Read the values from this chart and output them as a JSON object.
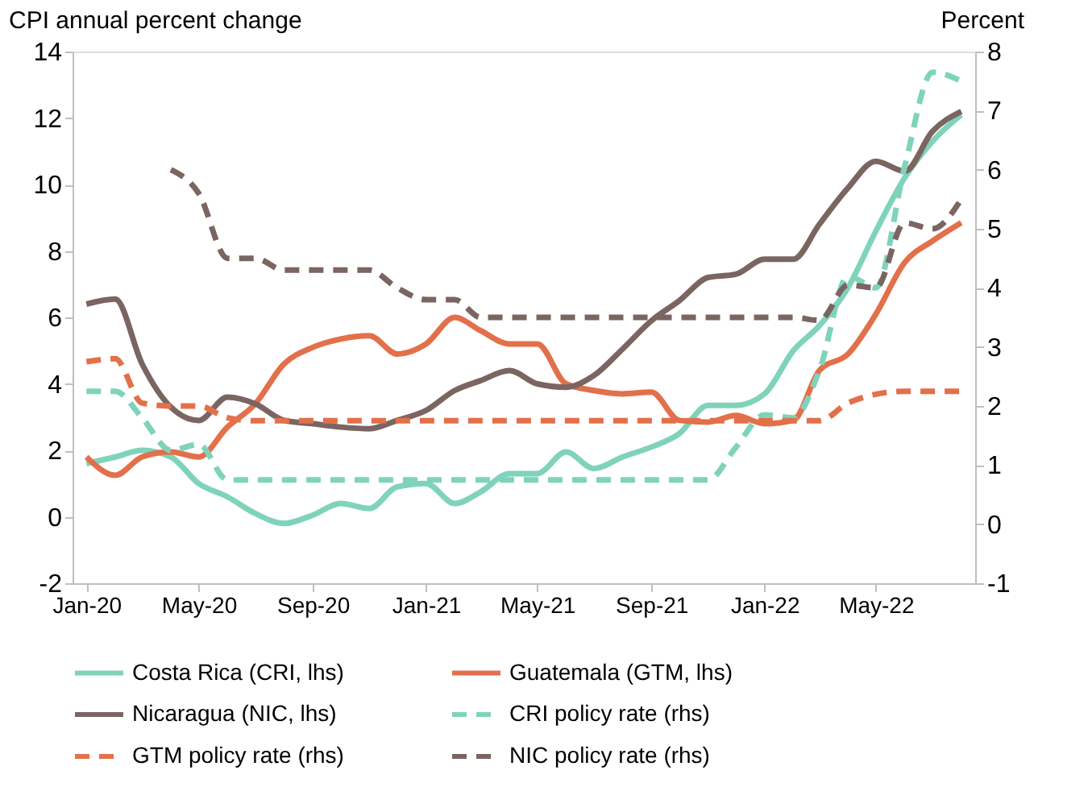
{
  "chart_data": {
    "type": "line",
    "ylabel": "CPI annual percent change",
    "y2label": "Percent",
    "x": [
      "2020-01",
      "2020-02",
      "2020-03",
      "2020-04",
      "2020-05",
      "2020-06",
      "2020-07",
      "2020-08",
      "2020-09",
      "2020-10",
      "2020-11",
      "2020-12",
      "2021-01",
      "2021-02",
      "2021-03",
      "2021-04",
      "2021-05",
      "2021-06",
      "2021-07",
      "2021-08",
      "2021-09",
      "2021-10",
      "2021-11",
      "2021-12",
      "2022-01",
      "2022-02",
      "2022-03",
      "2022-04",
      "2022-05",
      "2022-06",
      "2022-07",
      "2022-08"
    ],
    "xlim": [
      "2019-12-17",
      "2022-08-16"
    ],
    "xticks": [
      {
        "value": "2020-01",
        "label": "Jan-20"
      },
      {
        "value": "2020-05",
        "label": "May-20"
      },
      {
        "value": "2020-09",
        "label": "Sep-20"
      },
      {
        "value": "2021-01",
        "label": "Jan-21"
      },
      {
        "value": "2021-05",
        "label": "May-21"
      },
      {
        "value": "2021-09",
        "label": "Sep-21"
      },
      {
        "value": "2022-01",
        "label": "Jan-22"
      },
      {
        "value": "2022-05",
        "label": "May-22"
      }
    ],
    "ylim": [
      -2,
      14
    ],
    "yticks": [
      -2,
      0,
      2,
      4,
      6,
      8,
      10,
      12,
      14
    ],
    "y2lim": [
      -1,
      8
    ],
    "y2ticks": [
      -1,
      0,
      1,
      2,
      3,
      4,
      5,
      6,
      7,
      8
    ],
    "grid": false,
    "legend": "bottom",
    "marker": "none",
    "series": [
      {
        "name": "Costa Rica (CRI, lhs)",
        "color": "#7fd3bb",
        "line_style": "solid",
        "values": [
          1.6,
          1.8,
          2.0,
          1.8,
          1.0,
          0.6,
          0.1,
          -0.2,
          0.05,
          0.4,
          0.25,
          0.9,
          1.0,
          0.4,
          0.75,
          1.3,
          1.3,
          1.95,
          1.45,
          1.8,
          2.1,
          2.5,
          3.35,
          3.35,
          3.7,
          5.0,
          5.75,
          6.9,
          8.6,
          10.2,
          11.3,
          12.1
        ]
      },
      {
        "name": "Guatemala (GTM, lhs)",
        "color": "#e2704a",
        "line_style": "solid",
        "values": [
          1.8,
          1.25,
          1.8,
          1.95,
          1.8,
          2.7,
          3.4,
          4.6,
          5.1,
          5.35,
          5.45,
          4.9,
          5.2,
          6.0,
          5.6,
          5.2,
          5.2,
          4.0,
          3.8,
          3.7,
          3.75,
          2.9,
          2.85,
          3.05,
          2.8,
          2.9,
          4.4,
          4.9,
          6.1,
          7.65,
          8.3,
          8.85
        ]
      },
      {
        "name": "Nicaragua (NIC, lhs)",
        "color": "#7a6561",
        "line_style": "solid",
        "values": [
          6.4,
          6.55,
          4.6,
          3.3,
          2.9,
          3.6,
          3.4,
          2.9,
          2.8,
          2.7,
          2.65,
          2.9,
          3.2,
          3.8,
          4.1,
          4.4,
          4.0,
          3.9,
          4.25,
          5.05,
          5.9,
          6.5,
          7.2,
          7.3,
          7.75,
          7.75,
          8.8,
          9.9,
          10.7,
          10.4,
          11.6,
          12.2
        ]
      },
      {
        "name": "CRI policy rate (rhs)",
        "color": "#7fd3bb",
        "line_style": "dashed",
        "axis": "y2",
        "values": [
          2.25,
          2.25,
          1.8,
          1.25,
          1.35,
          0.75,
          0.75,
          0.75,
          0.75,
          0.75,
          0.75,
          0.75,
          0.75,
          0.75,
          0.75,
          0.75,
          0.75,
          0.75,
          0.75,
          0.75,
          0.75,
          0.75,
          0.75,
          1.3,
          1.85,
          1.8,
          2.6,
          4.2,
          4.0,
          6.05,
          7.65,
          7.5
        ]
      },
      {
        "name": "GTM policy rate (rhs)",
        "color": "#e2704a",
        "line_style": "dashed",
        "axis": "y2",
        "values": [
          2.75,
          2.8,
          2.05,
          2.0,
          2.0,
          1.8,
          1.75,
          1.75,
          1.75,
          1.75,
          1.75,
          1.75,
          1.75,
          1.75,
          1.75,
          1.75,
          1.75,
          1.75,
          1.75,
          1.75,
          1.75,
          1.75,
          1.75,
          1.75,
          1.75,
          1.75,
          1.75,
          2.05,
          2.2,
          2.25,
          2.25,
          2.25
        ]
      },
      {
        "name": "NIC policy rate (rhs)",
        "color": "#7a6561",
        "line_style": "dashed",
        "axis": "y2",
        "values": [
          null,
          null,
          null,
          6.0,
          5.6,
          4.5,
          4.5,
          4.3,
          4.3,
          4.3,
          4.3,
          4.0,
          3.8,
          3.8,
          3.5,
          3.5,
          3.5,
          3.5,
          3.5,
          3.5,
          3.5,
          3.5,
          3.5,
          3.5,
          3.5,
          3.5,
          3.45,
          4.05,
          4.0,
          5.1,
          5.0,
          5.5
        ]
      }
    ]
  }
}
